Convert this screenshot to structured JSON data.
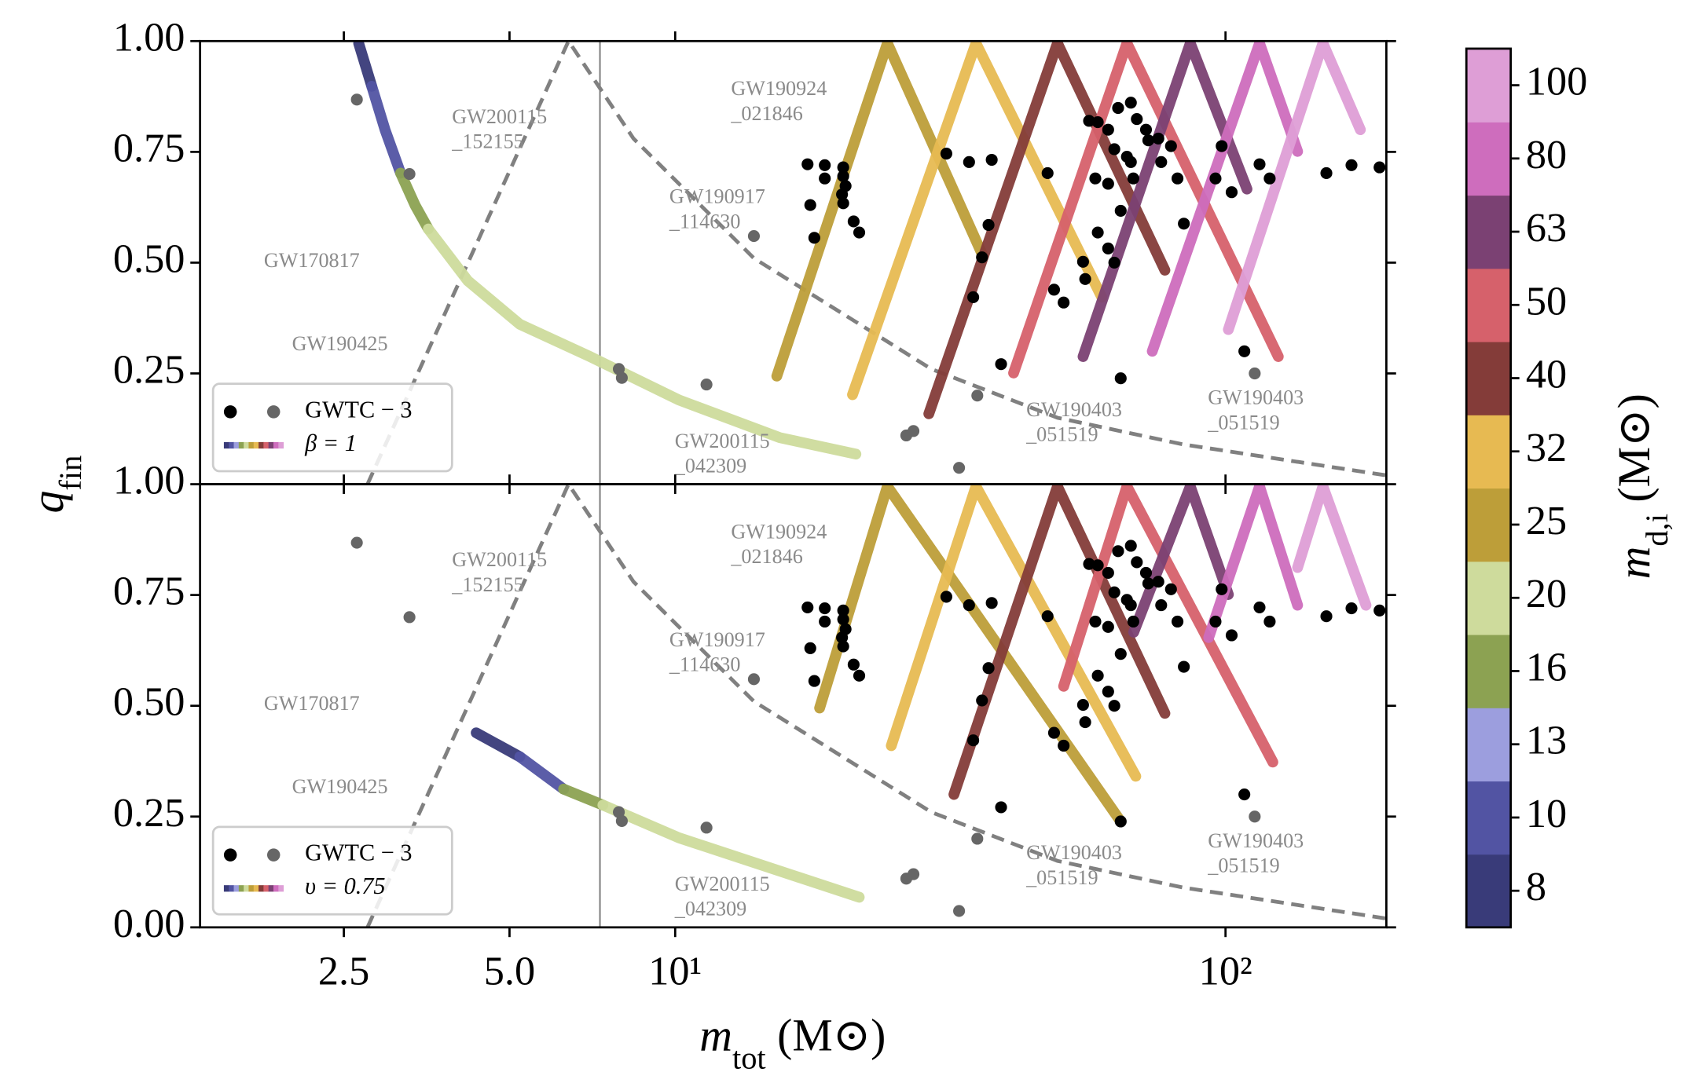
{
  "chart_data": {
    "type": "scatter",
    "xscale": "log",
    "xlabel": [
      "m",
      "tot",
      " (M⊙)"
    ],
    "ylabel": [
      "q",
      "fin"
    ],
    "xlim": [
      1.37,
      196
    ],
    "xticks": [
      2.5,
      {
        "value": 5,
        "label": "5.0"
      },
      {
        "value": 10,
        "label": "10¹"
      },
      {
        "value": 100,
        "label": "10²"
      }
    ],
    "gwtc": {
      "label": "GWTC − 3",
      "series": [
        {
          "color": "#000000",
          "x": [
            17.4,
            18.7,
            20.2,
            18.7,
            20.2,
            17.6,
            20.1,
            20.4,
            20.2,
            17.9,
            21.1,
            21.6,
            31.1,
            34.2,
            37.6,
            47.5,
            37.1,
            36.1,
            34.8,
            39.1,
            48.8,
            50.8,
            55.1,
            56.5,
            58.6,
            63.8,
            61.2,
            67.3,
            69.0,
            71.7,
            62.8,
            66.2,
            58.0,
            61.2,
            67.3,
            68.0,
            72.4,
            75.5,
            79.6,
            76.4,
            81.8,
            84.0,
            64.5,
            61.2,
            58.6,
            55.6,
            62.8,
            64.5,
            98.4,
            95.9,
            102.6,
            115.3,
            120.3,
            108.2,
            152.5,
            169.4,
            190.5
          ],
          "y": [
            0.722,
            0.72,
            0.715,
            0.69,
            0.695,
            0.63,
            0.654,
            0.673,
            0.634,
            0.556,
            0.593,
            0.568,
            0.746,
            0.727,
            0.732,
            0.702,
            0.585,
            0.512,
            0.422,
            0.271,
            0.439,
            0.41,
            0.502,
            0.82,
            0.817,
            0.849,
            0.8,
            0.861,
            0.824,
            0.8,
            0.756,
            0.739,
            0.69,
            0.678,
            0.727,
            0.69,
            0.776,
            0.78,
            0.763,
            0.727,
            0.69,
            0.588,
            0.617,
            0.532,
            0.568,
            0.463,
            0.5,
            0.239,
            0.763,
            0.69,
            0.659,
            0.722,
            0.69,
            0.3,
            0.702,
            0.72,
            0.715
          ]
        },
        {
          "color": "#666666",
          "x": [
            2.64,
            3.29,
            13.9,
            11.4,
            7.9,
            8.0,
            35.4,
            113,
            32.8,
            26.3,
            27.1
          ],
          "y": [
            0.868,
            0.7,
            0.56,
            0.225,
            0.26,
            0.24,
            0.2,
            0.25,
            0.037,
            0.11,
            0.12
          ]
        }
      ]
    },
    "dashed_curve": {
      "color": "#808080",
      "x": [
        2.76,
        6.4,
        8.4,
        13.9,
        29.2,
        49.5,
        83.6,
        196
      ],
      "y": [
        0,
        1,
        0.78,
        0.51,
        0.26,
        0.15,
        0.09,
        0.02
      ]
    },
    "vline": {
      "color": "#808080",
      "x": 7.3
    },
    "colorbar": {
      "label": [
        "m",
        "d,i",
        " (M⊙)"
      ],
      "levels": [
        8,
        10,
        13,
        16,
        20,
        25,
        32,
        40,
        50,
        63,
        80,
        100
      ],
      "colors": [
        "#393b79",
        "#5254a3",
        "#9c9ede",
        "#8ca252",
        "#cedb9c",
        "#bd9e39",
        "#e7ba52",
        "#843c39",
        "#d6616b",
        "#7b4173",
        "#ce6dbd",
        "#de9ed6"
      ]
    },
    "panels": [
      {
        "ylim": [
          0,
          1
        ],
        "yticks": [
          {
            "value": 0.25,
            "label": "0.25"
          },
          {
            "value": 0.5,
            "label": "0.50"
          },
          {
            "value": 0.75,
            "label": "0.75"
          },
          {
            "value": 1,
            "label": "1.00"
          }
        ],
        "legend_track_label": "β = 1",
        "annotations": [
          [
            "GW170817"
          ],
          [
            "GW190425"
          ],
          [
            "GW200115",
            "_152155"
          ],
          [
            "GW190924",
            "_021846"
          ],
          [
            "GW190917",
            "_114630"
          ],
          [
            "GW200115",
            "_042309"
          ],
          [
            "GW190403",
            "_051519"
          ],
          [
            "GW190403",
            "_051519"
          ]
        ],
        "tracks": [
          {
            "color": "#393b79",
            "x": [
              2.66,
              2.81
            ],
            "y": [
              0.995,
              0.898
            ]
          },
          {
            "color": "#5254a3",
            "x": [
              2.81,
              2.97,
              3.17
            ],
            "y": [
              0.898,
              0.8,
              0.702
            ]
          },
          {
            "color": "#8ca252",
            "x": [
              3.17,
              3.37,
              3.56
            ],
            "y": [
              0.702,
              0.629,
              0.576
            ]
          },
          {
            "color": "#cedb9c",
            "x": [
              3.56,
              4.2,
              5.22,
              7.0,
              10.16,
              15.5,
              21.3
            ],
            "y": [
              0.576,
              0.459,
              0.361,
              0.288,
              0.19,
              0.105,
              0.068
            ]
          },
          {
            "color": "#bd9e39",
            "x": [
              15.3,
              24.3,
              36.1
            ],
            "y": [
              0.244,
              0.995,
              0.52
            ]
          },
          {
            "color": "#e7ba52",
            "x": [
              21.0,
              35.2,
              59.6
            ],
            "y": [
              0.202,
              0.995,
              0.422
            ]
          },
          {
            "color": "#843c39",
            "x": [
              28.9,
              49.5,
              77.6
            ],
            "y": [
              0.159,
              0.995,
              0.483
            ]
          },
          {
            "color": "#d6616b",
            "x": [
              41.2,
              66.2,
              124.7
            ],
            "y": [
              0.251,
              0.995,
              0.288
            ]
          },
          {
            "color": "#7b4173",
            "x": [
              55.1,
              86.3,
              109.4
            ],
            "y": [
              0.288,
              0.995,
              0.666
            ]
          },
          {
            "color": "#ce6dbd",
            "x": [
              73.6,
              115.3,
              135.2
            ],
            "y": [
              0.3,
              0.995,
              0.751
            ]
          },
          {
            "color": "#de9ed6",
            "x": [
              101.2,
              150.3,
              175.8
            ],
            "y": [
              0.349,
              0.995,
              0.8
            ]
          }
        ]
      },
      {
        "ylim": [
          0,
          1
        ],
        "yticks": [
          {
            "value": 0,
            "label": "0.00"
          },
          {
            "value": 0.25,
            "label": "0.25"
          },
          {
            "value": 0.5,
            "label": "0.50"
          },
          {
            "value": 0.75,
            "label": "0.75"
          },
          {
            "value": 1,
            "label": "1.00"
          }
        ],
        "legend_track_label": "υ = 0.75",
        "annotations": [
          [
            "GW170817"
          ],
          [
            "GW190425"
          ],
          [
            "GW200115",
            "_152155"
          ],
          [
            "GW190924",
            "_021846"
          ],
          [
            "GW190917",
            "_114630"
          ],
          [
            "GW200115",
            "_042309"
          ],
          [
            "GW190403",
            "_051519"
          ],
          [
            "GW190403",
            "_051519"
          ]
        ],
        "tracks": [
          {
            "color": "#393b79",
            "x": [
              4.35,
              5.22
            ],
            "y": [
              0.439,
              0.385
            ]
          },
          {
            "color": "#5254a3",
            "x": [
              5.22,
              6.27
            ],
            "y": [
              0.385,
              0.312
            ]
          },
          {
            "color": "#8ca252",
            "x": [
              6.27,
              7.39
            ],
            "y": [
              0.312,
              0.276
            ]
          },
          {
            "color": "#cedb9c",
            "x": [
              7.39,
              10.16,
              21.6
            ],
            "y": [
              0.276,
              0.202,
              0.068
            ]
          },
          {
            "color": "#bd9e39",
            "x": [
              18.3,
              24.3,
              64.5
            ],
            "y": [
              0.495,
              0.995,
              0.239
            ]
          },
          {
            "color": "#e7ba52",
            "x": [
              24.7,
              35.2,
              68.7
            ],
            "y": [
              0.41,
              0.995,
              0.341
            ]
          },
          {
            "color": "#843c39",
            "x": [
              32.1,
              49.5,
              77.6
            ],
            "y": [
              0.3,
              0.995,
              0.483
            ]
          },
          {
            "color": "#d6616b",
            "x": [
              50.8,
              66.2,
              121.9
            ],
            "y": [
              0.544,
              0.995,
              0.373
            ]
          },
          {
            "color": "#7b4173",
            "x": [
              68.1,
              86.3,
              101.2
            ],
            "y": [
              0.666,
              0.995,
              0.751
            ]
          },
          {
            "color": "#ce6dbd",
            "x": [
              93.2,
              115.3,
              135.2
            ],
            "y": [
              0.654,
              0.995,
              0.727
            ]
          },
          {
            "color": "#de9ed6",
            "x": [
              135.2,
              150.3,
              180
            ],
            "y": [
              0.812,
              0.995,
              0.727
            ]
          }
        ]
      }
    ]
  }
}
